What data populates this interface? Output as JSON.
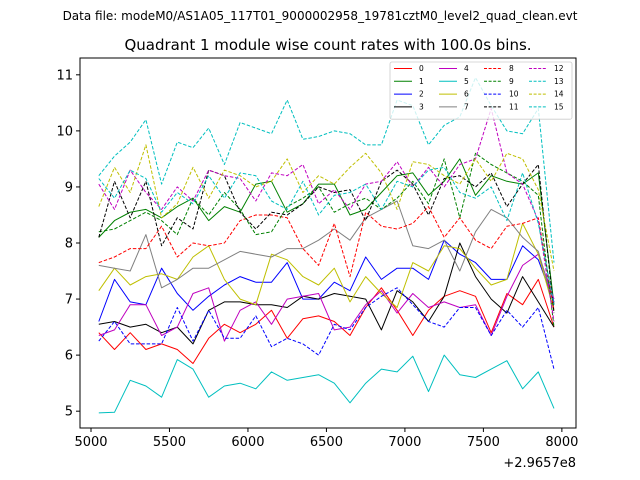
{
  "chart_data": {
    "type": "line",
    "figure_label": "Data file: modeM0/AS1A05_117T01_9000002958_19781cztM0_level2_quad_clean.evt",
    "title": "Quadrant 1 module wise count rates with 100.0s bins.",
    "xlabel": "",
    "ylabel": "",
    "x_offset_label": "+2.9657e8",
    "xlim": [
      4930,
      8090
    ],
    "ylim": [
      4.7,
      11.3
    ],
    "x_ticks": [
      5000,
      5500,
      6000,
      6500,
      7000,
      7500,
      8000
    ],
    "x_tick_labels": [
      "5000",
      "5500",
      "6000",
      "6500",
      "7000",
      "7500",
      "8000"
    ],
    "y_ticks": [
      5,
      6,
      7,
      8,
      9,
      10,
      11
    ],
    "y_tick_labels": [
      "5",
      "6",
      "7",
      "8",
      "9",
      "10",
      "11"
    ],
    "grid": false,
    "legend_position": "top-right",
    "legend_columns": 4,
    "x": [
      5050,
      5150,
      5250,
      5350,
      5450,
      5550,
      5650,
      5750,
      5850,
      5950,
      6050,
      6150,
      6250,
      6350,
      6450,
      6550,
      6650,
      6750,
      6850,
      6950,
      7050,
      7150,
      7250,
      7350,
      7450,
      7550,
      7650,
      7750,
      7850,
      7950
    ],
    "series": [
      {
        "name": "0",
        "color": "#ff0000",
        "dash": "solid",
        "values": [
          6.4,
          6.1,
          6.4,
          6.1,
          6.2,
          6.1,
          5.85,
          6.3,
          6.55,
          6.4,
          6.55,
          6.8,
          6.3,
          6.65,
          6.7,
          6.6,
          6.35,
          6.85,
          7.2,
          6.8,
          6.35,
          6.8,
          7.05,
          7.15,
          7.05,
          6.4,
          7.1,
          6.9,
          7.35,
          6.5
        ]
      },
      {
        "name": "1",
        "color": "#008000",
        "dash": "solid",
        "values": [
          8.1,
          8.4,
          8.55,
          8.6,
          8.45,
          8.65,
          8.8,
          8.4,
          8.65,
          8.55,
          9.05,
          9.1,
          8.55,
          8.7,
          9.05,
          9.05,
          8.5,
          8.6,
          8.9,
          9.2,
          9.25,
          8.85,
          9.1,
          9.5,
          8.85,
          9.2,
          9.1,
          9.05,
          9.25,
          6.9
        ]
      },
      {
        "name": "2",
        "color": "#0000ff",
        "dash": "solid",
        "values": [
          6.6,
          7.35,
          6.95,
          6.9,
          7.55,
          7.1,
          6.8,
          7.05,
          7.25,
          7.4,
          7.3,
          7.3,
          7.65,
          7.0,
          7.0,
          7.3,
          7.15,
          7.75,
          7.35,
          7.55,
          7.55,
          7.35,
          8.05,
          7.8,
          7.65,
          7.35,
          7.35,
          7.95,
          7.7,
          6.95
        ]
      },
      {
        "name": "3",
        "color": "#000000",
        "dash": "solid",
        "values": [
          6.55,
          6.6,
          6.5,
          6.55,
          6.4,
          6.5,
          6.2,
          6.8,
          6.95,
          6.95,
          6.9,
          6.9,
          6.85,
          7.05,
          7.0,
          7.1,
          7.05,
          7.0,
          6.45,
          7.15,
          6.95,
          6.6,
          7.05,
          8.0,
          7.4,
          7.0,
          6.75,
          7.4,
          6.95,
          6.5
        ]
      },
      {
        "name": "4",
        "color": "#bf00bf",
        "dash": "solid",
        "values": [
          6.35,
          6.45,
          6.9,
          6.9,
          6.35,
          6.5,
          7.1,
          7.2,
          6.25,
          6.8,
          6.95,
          6.55,
          7.0,
          7.05,
          7.1,
          6.45,
          6.5,
          6.9,
          7.15,
          6.75,
          7.1,
          6.85,
          6.95,
          6.85,
          6.9,
          6.35,
          7.05,
          7.6,
          7.8,
          7.0
        ]
      },
      {
        "name": "5",
        "color": "#00bfbf",
        "dash": "solid",
        "values": [
          4.97,
          4.98,
          5.55,
          5.45,
          5.25,
          5.92,
          5.75,
          5.25,
          5.45,
          5.5,
          5.4,
          5.7,
          5.55,
          5.6,
          5.65,
          5.5,
          5.15,
          5.5,
          5.75,
          5.7,
          5.98,
          5.35,
          6.0,
          5.65,
          5.6,
          5.75,
          5.9,
          5.4,
          5.7,
          5.05
        ]
      },
      {
        "name": "6",
        "color": "#bfbf00",
        "dash": "solid",
        "values": [
          7.15,
          7.55,
          7.25,
          7.4,
          7.45,
          7.35,
          7.75,
          7.95,
          7.35,
          7.0,
          6.9,
          7.8,
          7.7,
          7.4,
          7.25,
          7.55,
          6.95,
          7.4,
          7.1,
          6.85,
          7.65,
          7.5,
          7.95,
          7.9,
          7.55,
          7.25,
          7.35,
          8.35,
          7.8,
          6.8
        ]
      },
      {
        "name": "7",
        "color": "#808080",
        "dash": "solid",
        "values": [
          7.6,
          7.55,
          7.5,
          8.15,
          7.2,
          7.35,
          7.55,
          7.55,
          7.7,
          7.85,
          7.8,
          7.75,
          7.9,
          7.9,
          8.05,
          8.25,
          8.05,
          8.45,
          8.6,
          8.75,
          7.95,
          7.9,
          8.05,
          7.5,
          8.2,
          8.6,
          8.45,
          8.1,
          7.85,
          6.9
        ]
      },
      {
        "name": "8",
        "color": "#ff0000",
        "dash": "dashed",
        "values": [
          7.65,
          7.75,
          7.9,
          7.9,
          8.3,
          7.75,
          8.0,
          7.95,
          8.0,
          8.4,
          8.5,
          8.5,
          8.45,
          7.9,
          7.6,
          8.35,
          7.4,
          8.55,
          8.3,
          8.25,
          8.35,
          8.65,
          8.1,
          8.45,
          8.05,
          7.9,
          8.3,
          8.35,
          8.45,
          6.8
        ]
      },
      {
        "name": "9",
        "color": "#008000",
        "dash": "dashed",
        "values": [
          8.2,
          8.25,
          8.4,
          8.55,
          8.4,
          8.15,
          8.8,
          8.5,
          8.9,
          8.6,
          8.15,
          8.2,
          8.65,
          8.8,
          9.0,
          8.55,
          8.7,
          8.8,
          8.6,
          8.8,
          9.1,
          8.7,
          9.5,
          8.45,
          9.6,
          9.4,
          9.25,
          9.1,
          8.85,
          6.5
        ]
      },
      {
        "name": "10",
        "color": "#0000ff",
        "dash": "dashed",
        "values": [
          6.25,
          6.6,
          6.2,
          6.2,
          6.2,
          6.85,
          6.25,
          6.8,
          6.3,
          6.3,
          6.7,
          6.15,
          6.3,
          6.2,
          6.0,
          6.55,
          6.45,
          6.85,
          7.05,
          7.2,
          6.9,
          6.6,
          6.5,
          6.85,
          6.85,
          6.35,
          6.8,
          6.5,
          6.85,
          5.75
        ]
      },
      {
        "name": "11",
        "color": "#000000",
        "dash": "dashed",
        "values": [
          8.1,
          9.1,
          8.45,
          9.1,
          7.95,
          8.45,
          8.25,
          9.3,
          9.2,
          8.55,
          8.25,
          8.55,
          8.5,
          8.7,
          9.0,
          8.9,
          8.95,
          8.4,
          9.1,
          9.3,
          9.05,
          8.5,
          9.15,
          9.2,
          9.0,
          9.25,
          8.65,
          9.05,
          9.4,
          6.75
        ]
      },
      {
        "name": "12",
        "color": "#bf00bf",
        "dash": "dashed",
        "values": [
          9.05,
          8.6,
          9.3,
          8.9,
          8.6,
          9.0,
          8.75,
          9.3,
          9.2,
          9.15,
          8.75,
          9.25,
          9.2,
          9.4,
          8.7,
          8.95,
          8.6,
          9.05,
          9.1,
          9.45,
          9.0,
          9.35,
          9.0,
          9.4,
          9.5,
          10.4,
          9.25,
          9.05,
          8.4,
          6.6
        ]
      },
      {
        "name": "13",
        "color": "#00bfbf",
        "dash": "dashed",
        "values": [
          9.2,
          9.55,
          9.8,
          10.2,
          9.05,
          9.8,
          9.7,
          10.05,
          9.4,
          10.15,
          10.05,
          9.95,
          10.55,
          9.85,
          9.9,
          10.0,
          9.95,
          9.75,
          9.75,
          10.55,
          10.45,
          9.75,
          10.1,
          10.25,
          10.95,
          10.45,
          10.0,
          9.95,
          10.4,
          7.65
        ]
      },
      {
        "name": "14",
        "color": "#bfbf00",
        "dash": "dashed",
        "values": [
          8.65,
          9.35,
          8.9,
          9.75,
          8.45,
          8.7,
          9.35,
          8.8,
          9.3,
          9.2,
          9.0,
          9.1,
          9.5,
          8.9,
          9.2,
          9.05,
          9.35,
          9.6,
          9.25,
          8.6,
          9.45,
          9.4,
          9.2,
          9.05,
          9.5,
          9.1,
          9.6,
          9.5,
          8.95,
          7.5
        ]
      },
      {
        "name": "15",
        "color": "#00bfbf",
        "dash": "dashed",
        "values": [
          9.15,
          8.8,
          9.3,
          9.15,
          8.55,
          8.9,
          8.7,
          9.2,
          8.8,
          9.25,
          9.2,
          8.75,
          8.6,
          9.1,
          8.5,
          8.85,
          8.9,
          9.05,
          8.6,
          9.1,
          9.0,
          9.3,
          9.35,
          8.9,
          8.8,
          9.0,
          8.4,
          9.25,
          8.35,
          6.9
        ]
      }
    ]
  }
}
